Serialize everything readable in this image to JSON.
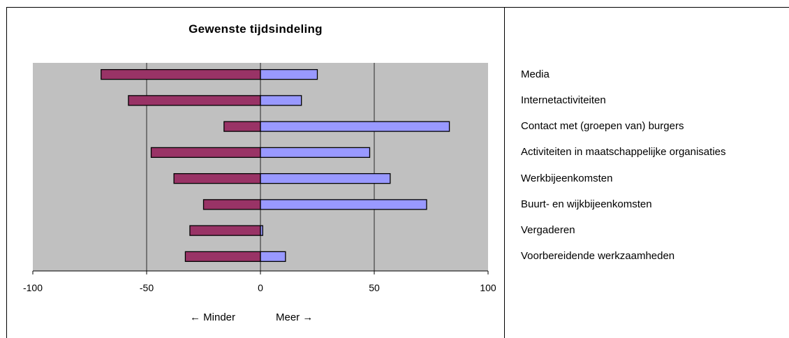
{
  "chart_data": {
    "type": "bar",
    "orientation": "horizontal",
    "stacked": true,
    "title": "Gewenste tijdsindeling",
    "xlim": [
      -100,
      100
    ],
    "x_ticks": [
      "-100",
      "-50",
      "0",
      "50",
      "100"
    ],
    "categories": [
      "Media",
      "Internetactiviteiten",
      "Contact met (groepen van) burgers",
      "Activiteiten in maatschappelijke organisaties",
      "Werkbijeenkomsten",
      "Buurt- en wijkbijeenkomsten",
      "Vergaderen",
      "Voorbereidende werkzaamheden"
    ],
    "series": [
      {
        "values": [
          -70,
          -58,
          -16,
          -48,
          -38,
          -25,
          -31,
          -33
        ],
        "color": "#993366"
      },
      {
        "values": [
          25,
          18,
          83,
          48,
          57,
          73,
          1,
          11
        ],
        "color": "#9999ff"
      }
    ],
    "grid": true,
    "plot_background": "#c0c0c0",
    "legend_position": "right"
  },
  "direction_labels": {
    "less": "← Minder",
    "more": "Meer →"
  }
}
